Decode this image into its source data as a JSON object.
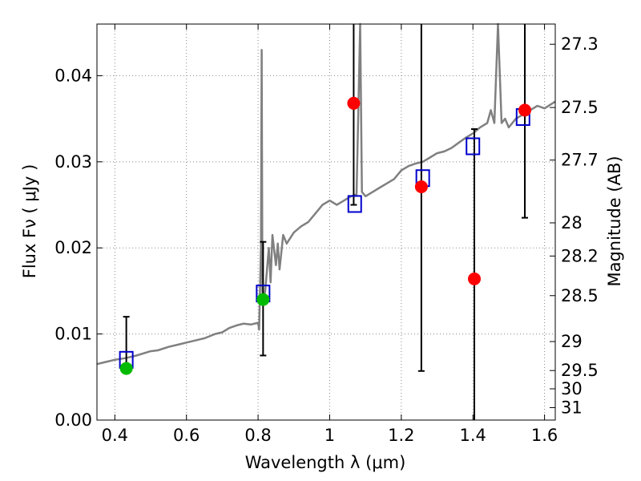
{
  "chart_data": {
    "type": "scatter",
    "xlabel": "Wavelength  λ (μm)",
    "ylabel": "Flux  Fν  ( μJy )",
    "ylabel_right": "Magnitude (AB)",
    "xlim": [
      0.35,
      1.63
    ],
    "ylim": [
      0.0,
      0.046
    ],
    "grid": true,
    "x_ticks": [
      {
        "value": 0.4,
        "label": "0.4"
      },
      {
        "value": 0.6,
        "label": "0.6"
      },
      {
        "value": 0.8,
        "label": "0.8"
      },
      {
        "value": 1.0,
        "label": "1"
      },
      {
        "value": 1.2,
        "label": "1.2"
      },
      {
        "value": 1.4,
        "label": "1.4"
      },
      {
        "value": 1.6,
        "label": "1.6"
      }
    ],
    "y_ticks": [
      {
        "value": 0.0,
        "label": "0.00"
      },
      {
        "value": 0.01,
        "label": "0.01"
      },
      {
        "value": 0.02,
        "label": "0.02"
      },
      {
        "value": 0.03,
        "label": "0.03"
      },
      {
        "value": 0.04,
        "label": "0.04"
      }
    ],
    "y_right_ticks": [
      {
        "mag": 27.3,
        "label": "27.3"
      },
      {
        "mag": 27.5,
        "label": "27.5"
      },
      {
        "mag": 27.7,
        "label": "27.7"
      },
      {
        "mag": 28.0,
        "label": "28"
      },
      {
        "mag": 28.2,
        "label": "28.2"
      },
      {
        "mag": 28.5,
        "label": "28.5"
      },
      {
        "mag": 29.0,
        "label": "29"
      },
      {
        "mag": 29.5,
        "label": "29.5"
      },
      {
        "mag": 30.0,
        "label": "30"
      },
      {
        "mag": 31.0,
        "label": "31"
      }
    ],
    "colors": {
      "spectrum": "#808080",
      "model": "#0000cc",
      "detection": "#ff0000",
      "optical": "#00bb00",
      "errorbar": "#000000",
      "grid": "#888888"
    },
    "spectrum": [
      [
        0.35,
        0.0065
      ],
      [
        0.37,
        0.0067
      ],
      [
        0.4,
        0.007
      ],
      [
        0.43,
        0.0072
      ],
      [
        0.46,
        0.0075
      ],
      [
        0.5,
        0.008
      ],
      [
        0.52,
        0.0081
      ],
      [
        0.55,
        0.0085
      ],
      [
        0.58,
        0.0088
      ],
      [
        0.6,
        0.009
      ],
      [
        0.62,
        0.0092
      ],
      [
        0.65,
        0.0095
      ],
      [
        0.68,
        0.01
      ],
      [
        0.7,
        0.0102
      ],
      [
        0.72,
        0.0107
      ],
      [
        0.74,
        0.011
      ],
      [
        0.76,
        0.0112
      ],
      [
        0.78,
        0.0111
      ],
      [
        0.8,
        0.0113
      ],
      [
        0.803,
        0.0105
      ],
      [
        0.808,
        0.02
      ],
      [
        0.81,
        0.043
      ],
      [
        0.812,
        0.015
      ],
      [
        0.815,
        0.014
      ],
      [
        0.82,
        0.015
      ],
      [
        0.83,
        0.02
      ],
      [
        0.835,
        0.016
      ],
      [
        0.84,
        0.0215
      ],
      [
        0.85,
        0.018
      ],
      [
        0.855,
        0.0205
      ],
      [
        0.86,
        0.0175
      ],
      [
        0.87,
        0.0215
      ],
      [
        0.88,
        0.0205
      ],
      [
        0.9,
        0.0218
      ],
      [
        0.92,
        0.0225
      ],
      [
        0.94,
        0.023
      ],
      [
        0.96,
        0.024
      ],
      [
        0.98,
        0.025
      ],
      [
        1.0,
        0.0255
      ],
      [
        1.02,
        0.025
      ],
      [
        1.04,
        0.0255
      ],
      [
        1.06,
        0.026
      ],
      [
        1.075,
        0.0262
      ],
      [
        1.085,
        0.046
      ],
      [
        1.09,
        0.0265
      ],
      [
        1.1,
        0.026
      ],
      [
        1.12,
        0.0265
      ],
      [
        1.14,
        0.027
      ],
      [
        1.16,
        0.0275
      ],
      [
        1.18,
        0.028
      ],
      [
        1.2,
        0.029
      ],
      [
        1.22,
        0.0295
      ],
      [
        1.24,
        0.0298
      ],
      [
        1.26,
        0.03
      ],
      [
        1.28,
        0.0305
      ],
      [
        1.3,
        0.031
      ],
      [
        1.32,
        0.0312
      ],
      [
        1.34,
        0.0316
      ],
      [
        1.36,
        0.0322
      ],
      [
        1.38,
        0.0328
      ],
      [
        1.4,
        0.0333
      ],
      [
        1.42,
        0.034
      ],
      [
        1.44,
        0.0345
      ],
      [
        1.45,
        0.036
      ],
      [
        1.46,
        0.0345
      ],
      [
        1.47,
        0.046
      ],
      [
        1.48,
        0.0345
      ],
      [
        1.49,
        0.035
      ],
      [
        1.5,
        0.034
      ],
      [
        1.52,
        0.035
      ],
      [
        1.54,
        0.0355
      ],
      [
        1.56,
        0.036
      ],
      [
        1.58,
        0.0365
      ],
      [
        1.6,
        0.0362
      ],
      [
        1.63,
        0.037
      ]
    ],
    "model_points": [
      {
        "x": 0.432,
        "y": 0.007
      },
      {
        "x": 0.814,
        "y": 0.0147
      },
      {
        "x": 1.07,
        "y": 0.0251
      },
      {
        "x": 1.26,
        "y": 0.0281
      },
      {
        "x": 1.4,
        "y": 0.0318
      },
      {
        "x": 1.54,
        "y": 0.0352
      }
    ],
    "detections": [
      {
        "x": 0.432,
        "y": 0.006,
        "err_lo": 0.006,
        "err_hi": 0.012,
        "color": "optical"
      },
      {
        "x": 0.814,
        "y": 0.014,
        "err_lo": 0.0075,
        "err_hi": 0.0207,
        "color": "optical"
      },
      {
        "x": 1.067,
        "y": 0.0368,
        "err_lo": 0.025,
        "err_hi": 0.046,
        "color": "detection"
      },
      {
        "x": 1.256,
        "y": 0.0271,
        "err_lo": 0.0057,
        "err_hi": 0.046,
        "color": "detection"
      },
      {
        "x": 1.404,
        "y": 0.0164,
        "err_lo": 0.0,
        "err_hi": 0.0338,
        "color": "detection"
      },
      {
        "x": 1.545,
        "y": 0.036,
        "err_lo": 0.0235,
        "err_hi": 0.046,
        "color": "detection"
      }
    ]
  }
}
